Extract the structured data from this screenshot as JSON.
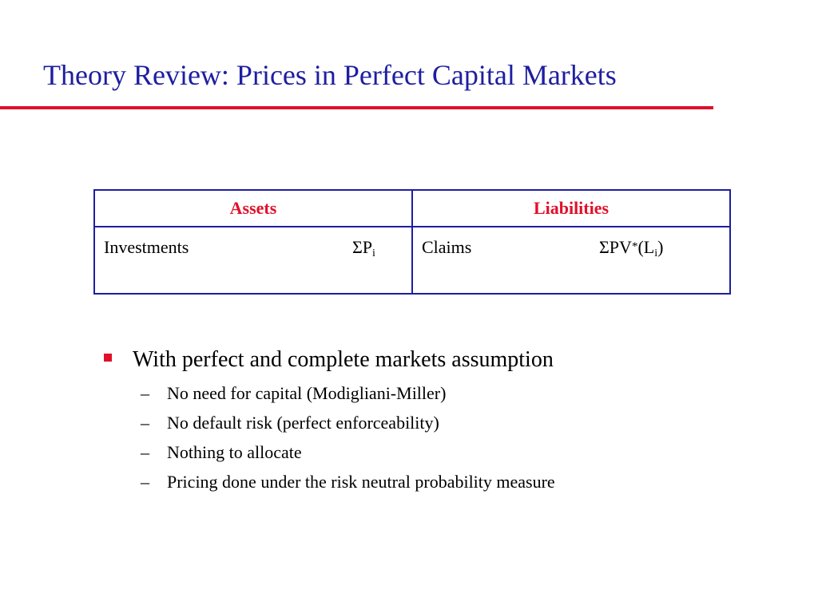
{
  "title": "Theory Review: Prices in Perfect Capital Markets",
  "colors": {
    "title": "#1e1ea0",
    "accent": "#e0102a",
    "table_border": "#1e1ea0",
    "header_text": "#e0102a",
    "bullet_marker": "#e0102a",
    "text": "#000000"
  },
  "table": {
    "headers": [
      "Assets",
      "Liabilities"
    ],
    "rows": [
      {
        "assets_label": "Investments",
        "assets_value_main": "ΣP",
        "assets_value_sub": "i",
        "liabilities_label": "Claims",
        "liabilities_value_prefix": "ΣPV",
        "liabilities_value_sup": "*",
        "liabilities_value_mid": "(L",
        "liabilities_value_sub": "i",
        "liabilities_value_suffix": ")"
      }
    ]
  },
  "bullets": [
    {
      "text": "With perfect and complete markets assumption",
      "sub_marker": "–",
      "subitems": [
        "No need for capital (Modigliani-Miller)",
        "No default risk (perfect enforceability)",
        "Nothing to allocate",
        "Pricing done under the risk neutral probability measure"
      ]
    }
  ]
}
